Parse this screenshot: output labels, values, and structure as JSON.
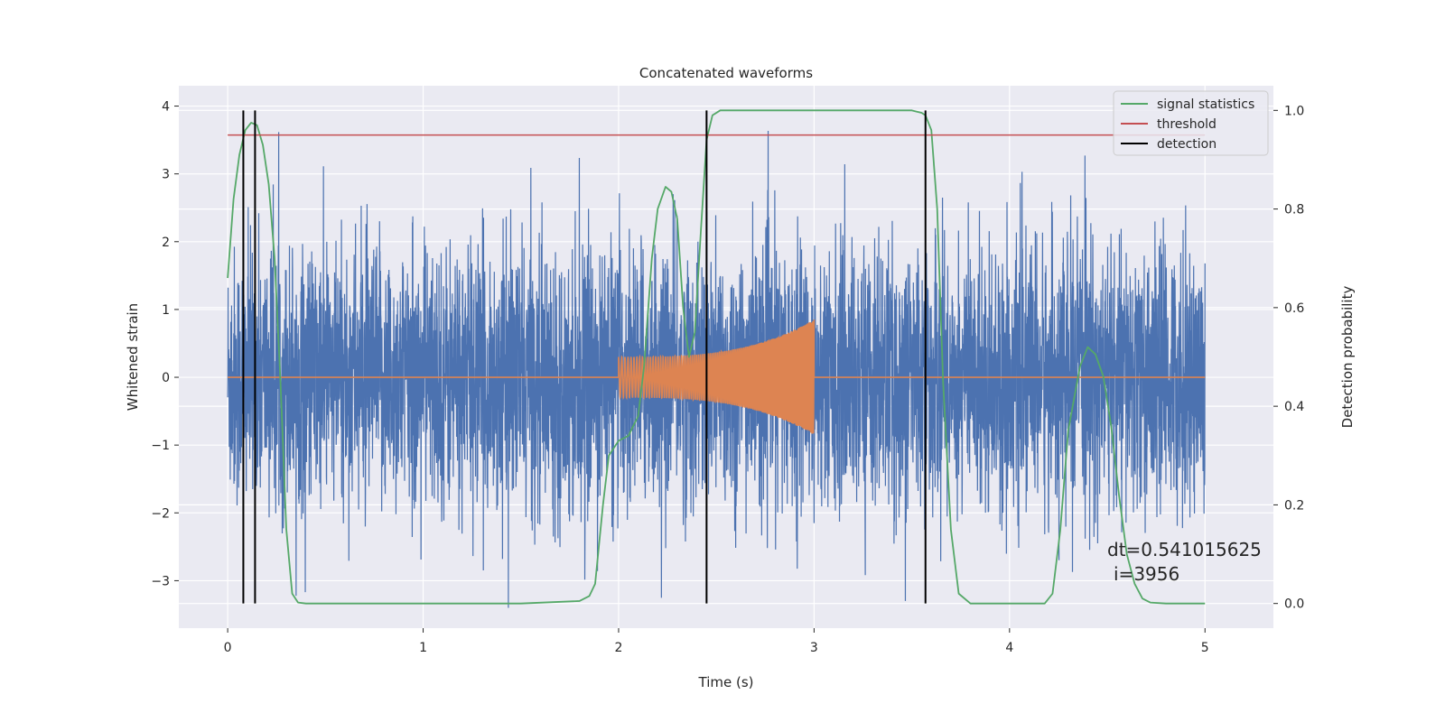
{
  "chart_data": {
    "type": "line",
    "title": "Concatenated waveforms",
    "xlabel": "Time (s)",
    "ylabel": "Whitened strain",
    "y2label": "Detection probability",
    "xlim": [
      -0.25,
      5.35
    ],
    "ylim": [
      -3.7,
      4.3
    ],
    "y2lim": [
      -0.05,
      1.05
    ],
    "xticks": [
      0,
      1,
      2,
      3,
      4,
      5
    ],
    "yticks": [
      -3,
      -2,
      -1,
      0,
      1,
      2,
      3,
      4
    ],
    "y2ticks": [
      0.0,
      0.2,
      0.4,
      0.6,
      0.8,
      1.0
    ],
    "xtick_labels": [
      "0",
      "1",
      "2",
      "3",
      "4",
      "5"
    ],
    "ytick_labels": [
      "−3",
      "−2",
      "−1",
      "0",
      "1",
      "2",
      "3",
      "4"
    ],
    "y2tick_labels": [
      "0.0",
      "0.2",
      "0.4",
      "0.6",
      "0.8",
      "1.0"
    ],
    "grid": true,
    "legend_position": "top-right",
    "colors": {
      "strain": "#4c72b0",
      "injection": "#dd8452",
      "signal": "#55a868",
      "threshold": "#c44e52",
      "detection": "#000000",
      "background": "#eaeaf2",
      "grid": "#ffffff"
    },
    "strain": {
      "x_start": 0,
      "x_end": 5,
      "amplitude_range": [
        -3.4,
        3.95
      ]
    },
    "injection": {
      "x_start": 2.0,
      "x_end": 3.0,
      "amplitude_start": 0.3,
      "amplitude_end": 0.85
    },
    "series": [
      {
        "name": "signal statistics",
        "axis": "right",
        "x": [
          0,
          0.03,
          0.06,
          0.09,
          0.12,
          0.15,
          0.18,
          0.21,
          0.24,
          0.27,
          0.3,
          0.33,
          0.36,
          0.4,
          0.6,
          1.0,
          1.5,
          1.8,
          1.85,
          1.88,
          1.92,
          1.95,
          2.0,
          2.05,
          2.1,
          2.13,
          2.17,
          2.2,
          2.24,
          2.27,
          2.3,
          2.33,
          2.36,
          2.39,
          2.42,
          2.45,
          2.48,
          2.52,
          2.56,
          2.62,
          3.0,
          3.5,
          3.55,
          3.57,
          3.6,
          3.63,
          3.66,
          3.7,
          3.74,
          3.8,
          4.0,
          4.18,
          4.22,
          4.26,
          4.3,
          4.36,
          4.4,
          4.44,
          4.48,
          4.52,
          4.56,
          4.6,
          4.64,
          4.68,
          4.72,
          4.8,
          5.0
        ],
        "y": [
          0.66,
          0.82,
          0.91,
          0.96,
          0.975,
          0.97,
          0.93,
          0.85,
          0.7,
          0.45,
          0.15,
          0.02,
          0.002,
          0.0,
          0.0,
          0.0,
          0.0,
          0.005,
          0.015,
          0.04,
          0.2,
          0.3,
          0.33,
          0.34,
          0.38,
          0.48,
          0.7,
          0.8,
          0.845,
          0.835,
          0.78,
          0.6,
          0.5,
          0.55,
          0.75,
          0.94,
          0.99,
          1.0,
          1.0,
          1.0,
          1.0,
          1.0,
          0.995,
          0.99,
          0.96,
          0.8,
          0.45,
          0.15,
          0.02,
          0.0,
          0.0,
          0.0,
          0.02,
          0.15,
          0.35,
          0.48,
          0.52,
          0.505,
          0.46,
          0.36,
          0.22,
          0.1,
          0.04,
          0.01,
          0.002,
          0.0,
          0.0
        ]
      },
      {
        "name": "threshold",
        "axis": "right",
        "x": [
          0,
          5
        ],
        "y": [
          0.95,
          0.95
        ]
      },
      {
        "name": "detection",
        "axis": "right",
        "x": [
          0.08,
          0.14,
          2.45,
          3.57
        ],
        "y_range": [
          0.0,
          1.0
        ]
      }
    ],
    "annotation": {
      "dt": "dt=0.541015625",
      "i": "i=3956"
    }
  }
}
